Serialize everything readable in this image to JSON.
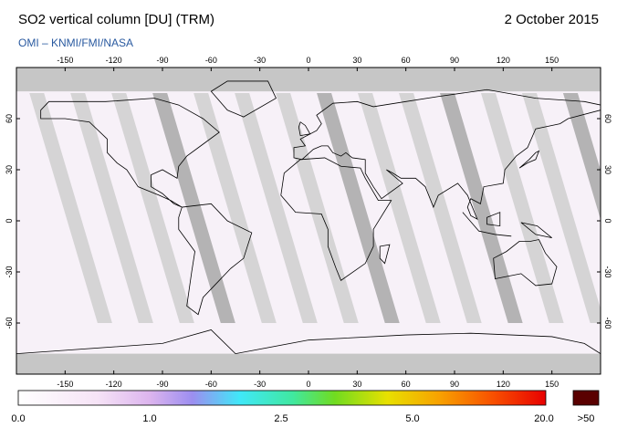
{
  "header": {
    "title": "SO2 vertical column [DU] (TRM)",
    "date": "2 October 2015",
    "source": "OMI  –  KNMI/FMI/NASA"
  },
  "map": {
    "lon_ticks": [
      -150,
      -120,
      -90,
      -60,
      -30,
      0,
      30,
      60,
      90,
      120,
      150
    ],
    "lat_ticks": [
      60,
      30,
      0,
      -30,
      -60
    ]
  },
  "colorbar": {
    "labels": [
      "0.0",
      "1.0",
      "2.5",
      "5.0",
      "20.0"
    ],
    "overflow_label": ">50"
  }
}
